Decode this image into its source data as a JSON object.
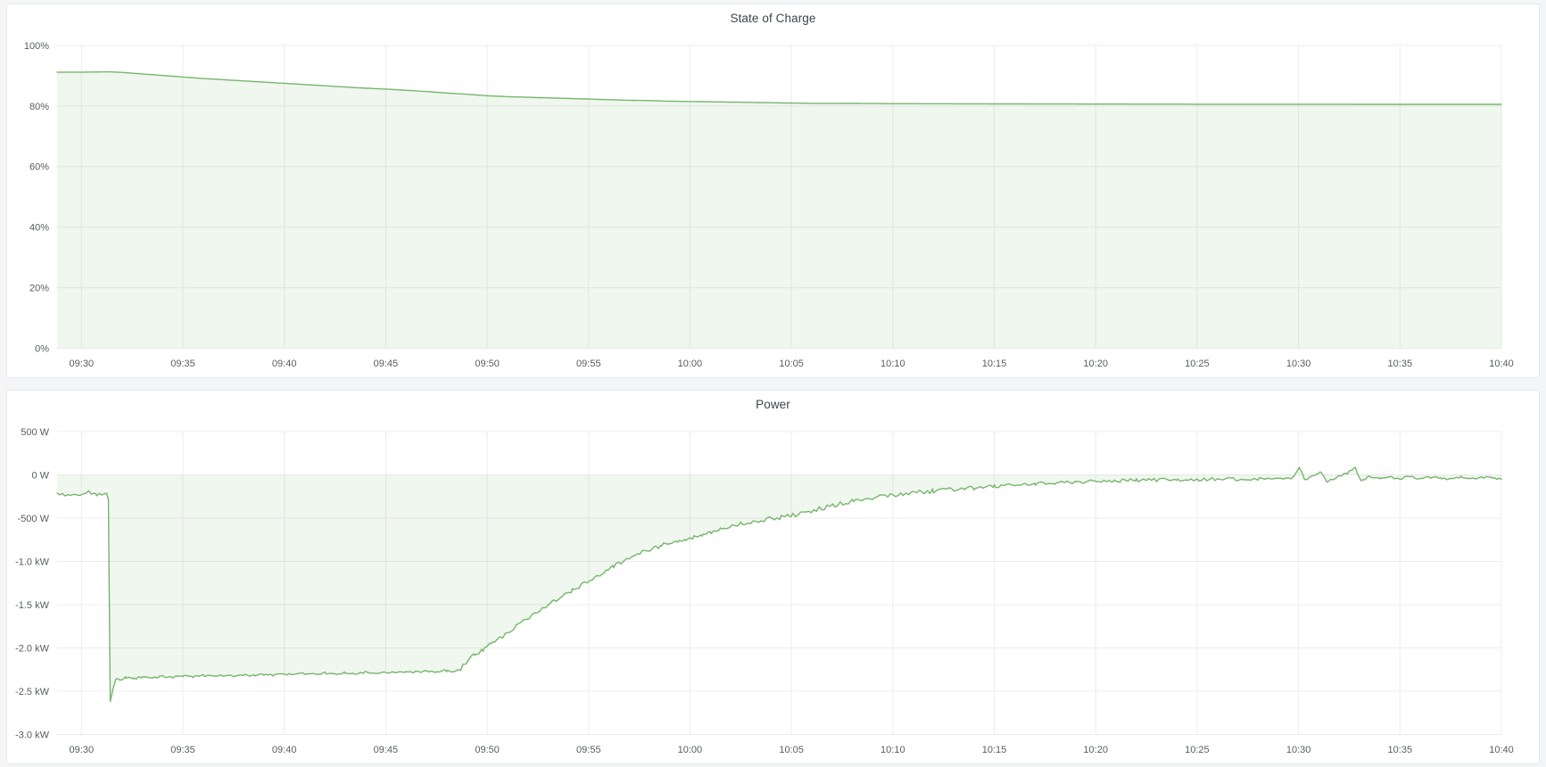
{
  "theme": {
    "page_background": "#f4f5f7",
    "panel_background": "#ffffff",
    "panel_border": "#e4e7ea",
    "grid_color": "#ececee",
    "tick_label_color": "#585c63",
    "title_color": "#3f434c",
    "series_line_color": "#77b56d",
    "series_fill_color": "rgba(119,181,109,0.11)"
  },
  "chart_data": [
    {
      "type": "area",
      "title": "State of Charge",
      "unit": "percent",
      "ylim": [
        0,
        100
      ],
      "t_min": -1.2,
      "t_max": 70,
      "x_unit": "minutes_from_09:30",
      "grid": true,
      "legend": "none",
      "y_ticks": [
        {
          "v": 100,
          "label": "100%"
        },
        {
          "v": 80,
          "label": "80%"
        },
        {
          "v": 60,
          "label": "60%"
        },
        {
          "v": 40,
          "label": "40%"
        },
        {
          "v": 20,
          "label": "20%"
        },
        {
          "v": 0,
          "label": "0%"
        }
      ],
      "x_ticks": [
        {
          "t": 0,
          "label": "09:30"
        },
        {
          "t": 5,
          "label": "09:35"
        },
        {
          "t": 10,
          "label": "09:40"
        },
        {
          "t": 15,
          "label": "09:45"
        },
        {
          "t": 20,
          "label": "09:50"
        },
        {
          "t": 25,
          "label": "09:55"
        },
        {
          "t": 30,
          "label": "10:00"
        },
        {
          "t": 35,
          "label": "10:05"
        },
        {
          "t": 40,
          "label": "10:10"
        },
        {
          "t": 45,
          "label": "10:15"
        },
        {
          "t": 50,
          "label": "10:20"
        },
        {
          "t": 55,
          "label": "10:25"
        },
        {
          "t": 60,
          "label": "10:30"
        },
        {
          "t": 65,
          "label": "10:35"
        },
        {
          "t": 70,
          "label": "10:40"
        }
      ],
      "noise": [],
      "keyframes": [
        [
          -1.2,
          91.2
        ],
        [
          0,
          91.2
        ],
        [
          1.4,
          91.3
        ],
        [
          2,
          91.1
        ],
        [
          3,
          90.6
        ],
        [
          4,
          90.1
        ],
        [
          5,
          89.6
        ],
        [
          6,
          89.1
        ],
        [
          7,
          88.7
        ],
        [
          8,
          88.3
        ],
        [
          9,
          87.9
        ],
        [
          10,
          87.5
        ],
        [
          11,
          87.1
        ],
        [
          12,
          86.7
        ],
        [
          13,
          86.3
        ],
        [
          14,
          85.9
        ],
        [
          15,
          85.6
        ],
        [
          16,
          85.2
        ],
        [
          17,
          84.8
        ],
        [
          18,
          84.3
        ],
        [
          19,
          83.9
        ],
        [
          20,
          83.4
        ],
        [
          21,
          83.1
        ],
        [
          22,
          82.9
        ],
        [
          23,
          82.7
        ],
        [
          24,
          82.5
        ],
        [
          25,
          82.3
        ],
        [
          26,
          82.1
        ],
        [
          27,
          81.9
        ],
        [
          28,
          81.8
        ],
        [
          29,
          81.6
        ],
        [
          30,
          81.5
        ],
        [
          31,
          81.4
        ],
        [
          32,
          81.3
        ],
        [
          33,
          81.2
        ],
        [
          34,
          81.1
        ],
        [
          35,
          81.0
        ],
        [
          36,
          80.9
        ],
        [
          38,
          80.85
        ],
        [
          40,
          80.8
        ],
        [
          43,
          80.75
        ],
        [
          46,
          80.7
        ],
        [
          50,
          80.65
        ],
        [
          55,
          80.6
        ],
        [
          60,
          80.6
        ],
        [
          65,
          80.55
        ],
        [
          70,
          80.55
        ]
      ]
    },
    {
      "type": "area",
      "title": "Power",
      "unit": "watt",
      "ylim": [
        -3000,
        500
      ],
      "t_min": -1.2,
      "t_max": 70,
      "x_unit": "minutes_from_09:30",
      "grid": true,
      "legend": "none",
      "y_ticks": [
        {
          "v": 500,
          "label": "500 W"
        },
        {
          "v": 0,
          "label": "0 W"
        },
        {
          "v": -500,
          "label": "-500 W"
        },
        {
          "v": -1000,
          "label": "-1.0 kW"
        },
        {
          "v": -1500,
          "label": "-1.5 kW"
        },
        {
          "v": -2000,
          "label": "-2.0 kW"
        },
        {
          "v": -2500,
          "label": "-2.5 kW"
        },
        {
          "v": -3000,
          "label": "-3.0 kW"
        }
      ],
      "x_ticks": [
        {
          "t": 0,
          "label": "09:30"
        },
        {
          "t": 5,
          "label": "09:35"
        },
        {
          "t": 10,
          "label": "09:40"
        },
        {
          "t": 15,
          "label": "09:45"
        },
        {
          "t": 20,
          "label": "09:50"
        },
        {
          "t": 25,
          "label": "09:55"
        },
        {
          "t": 30,
          "label": "10:00"
        },
        {
          "t": 35,
          "label": "10:05"
        },
        {
          "t": 40,
          "label": "10:10"
        },
        {
          "t": 45,
          "label": "10:15"
        },
        {
          "t": 50,
          "label": "10:20"
        },
        {
          "t": 55,
          "label": "10:25"
        },
        {
          "t": 60,
          "label": "10:30"
        },
        {
          "t": 65,
          "label": "10:35"
        },
        {
          "t": 70,
          "label": "10:40"
        }
      ],
      "noise": [
        {
          "from": -1.2,
          "to": 1.3,
          "amp": 22
        },
        {
          "from": 1.7,
          "to": 18.7,
          "amp": 12
        },
        {
          "from": 18.7,
          "to": 44,
          "amp": 26
        },
        {
          "from": 44,
          "to": 58,
          "amp": 20
        },
        {
          "from": 58,
          "to": 70,
          "amp": 14
        }
      ],
      "keyframes": [
        [
          -1.2,
          -210
        ],
        [
          -0.8,
          -245
        ],
        [
          -0.4,
          -215
        ],
        [
          0,
          -240
        ],
        [
          0.35,
          -205
        ],
        [
          0.7,
          -230
        ],
        [
          1.0,
          -215
        ],
        [
          1.25,
          -200
        ],
        [
          1.33,
          -285
        ],
        [
          1.42,
          -2620
        ],
        [
          1.55,
          -2480
        ],
        [
          1.7,
          -2360
        ],
        [
          1.9,
          -2370
        ],
        [
          2.2,
          -2340
        ],
        [
          2.6,
          -2355
        ],
        [
          3,
          -2335
        ],
        [
          3.5,
          -2350
        ],
        [
          4,
          -2330
        ],
        [
          4.5,
          -2340
        ],
        [
          5,
          -2325
        ],
        [
          5.5,
          -2335
        ],
        [
          6,
          -2320
        ],
        [
          6.5,
          -2330
        ],
        [
          7,
          -2315
        ],
        [
          7.5,
          -2325
        ],
        [
          8,
          -2310
        ],
        [
          8.5,
          -2320
        ],
        [
          9,
          -2305
        ],
        [
          9.5,
          -2315
        ],
        [
          10,
          -2300
        ],
        [
          10.5,
          -2310
        ],
        [
          11,
          -2295
        ],
        [
          11.5,
          -2305
        ],
        [
          12,
          -2290
        ],
        [
          12.5,
          -2300
        ],
        [
          13,
          -2285
        ],
        [
          13.5,
          -2295
        ],
        [
          14,
          -2280
        ],
        [
          14.5,
          -2290
        ],
        [
          15,
          -2278
        ],
        [
          15.5,
          -2285
        ],
        [
          16,
          -2272
        ],
        [
          16.5,
          -2280
        ],
        [
          17,
          -2268
        ],
        [
          17.5,
          -2275
        ],
        [
          18,
          -2262
        ],
        [
          18.4,
          -2268
        ],
        [
          18.7,
          -2250
        ],
        [
          19,
          -2150
        ],
        [
          19.4,
          -2080
        ],
        [
          19.8,
          -2030
        ],
        [
          20.2,
          -1955
        ],
        [
          20.6,
          -1885
        ],
        [
          21,
          -1830
        ],
        [
          21.4,
          -1755
        ],
        [
          21.8,
          -1690
        ],
        [
          22.2,
          -1630
        ],
        [
          22.6,
          -1560
        ],
        [
          23,
          -1490
        ],
        [
          23.4,
          -1445
        ],
        [
          23.8,
          -1390
        ],
        [
          24.2,
          -1330
        ],
        [
          24.6,
          -1285
        ],
        [
          25,
          -1230
        ],
        [
          25.4,
          -1175
        ],
        [
          25.8,
          -1125
        ],
        [
          26.2,
          -1065
        ],
        [
          26.6,
          -1015
        ],
        [
          27,
          -955
        ],
        [
          27.4,
          -915
        ],
        [
          27.8,
          -880
        ],
        [
          28.2,
          -845
        ],
        [
          28.6,
          -815
        ],
        [
          29,
          -790
        ],
        [
          29.4,
          -768
        ],
        [
          29.8,
          -745
        ],
        [
          30.2,
          -720
        ],
        [
          30.6,
          -690
        ],
        [
          31,
          -655
        ],
        [
          31.5,
          -625
        ],
        [
          32,
          -590
        ],
        [
          32.5,
          -565
        ],
        [
          33,
          -540
        ],
        [
          33.5,
          -520
        ],
        [
          34,
          -505
        ],
        [
          34.5,
          -488
        ],
        [
          35,
          -468
        ],
        [
          35.5,
          -445
        ],
        [
          36,
          -415
        ],
        [
          36.5,
          -385
        ],
        [
          37,
          -355
        ],
        [
          37.5,
          -330
        ],
        [
          38,
          -305
        ],
        [
          38.5,
          -288
        ],
        [
          39,
          -270
        ],
        [
          39.5,
          -250
        ],
        [
          40,
          -232
        ],
        [
          40.5,
          -218
        ],
        [
          41,
          -208
        ],
        [
          41.5,
          -198
        ],
        [
          42,
          -185
        ],
        [
          42.5,
          -175
        ],
        [
          43,
          -166
        ],
        [
          43.5,
          -158
        ],
        [
          44,
          -150
        ],
        [
          45,
          -134
        ],
        [
          46,
          -118
        ],
        [
          47,
          -103
        ],
        [
          48,
          -90
        ],
        [
          49,
          -82
        ],
        [
          50,
          -75
        ],
        [
          51,
          -68
        ],
        [
          52,
          -62
        ],
        [
          53,
          -58
        ],
        [
          54,
          -55
        ],
        [
          55,
          -52
        ],
        [
          56,
          -50
        ],
        [
          57,
          -48
        ],
        [
          58,
          -45
        ],
        [
          59,
          -42
        ],
        [
          59.7,
          -38
        ],
        [
          60.05,
          92
        ],
        [
          60.3,
          -65
        ],
        [
          60.7,
          -18
        ],
        [
          61.1,
          42
        ],
        [
          61.4,
          -72
        ],
        [
          61.9,
          -28
        ],
        [
          62.4,
          22
        ],
        [
          62.8,
          82
        ],
        [
          63.1,
          -78
        ],
        [
          63.5,
          -18
        ],
        [
          64,
          -42
        ],
        [
          64.5,
          -24
        ],
        [
          65,
          -46
        ],
        [
          65.5,
          -20
        ],
        [
          66,
          -48
        ],
        [
          66.5,
          -26
        ],
        [
          67,
          -36
        ],
        [
          67.5,
          -46
        ],
        [
          68,
          -24
        ],
        [
          68.5,
          -40
        ],
        [
          69,
          -30
        ],
        [
          69.5,
          -24
        ],
        [
          70,
          -58
        ]
      ]
    }
  ]
}
